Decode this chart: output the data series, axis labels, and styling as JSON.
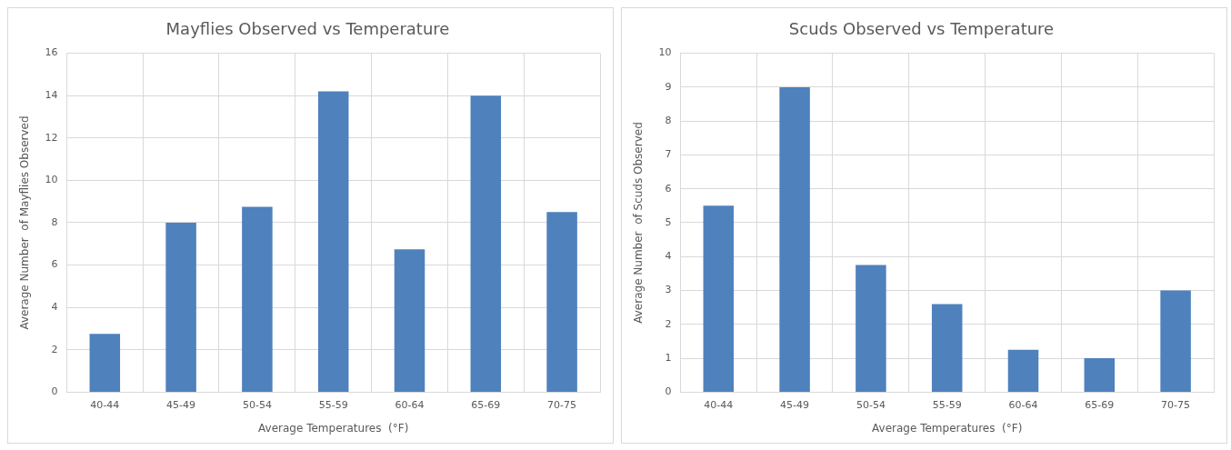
{
  "chart_data": [
    {
      "type": "bar",
      "title": "Mayflies Observed vs Temperature",
      "xlabel": "Average Temperatures  (°F)",
      "ylabel": "Average Number  of Mayflies Observed",
      "categories": [
        "40-44",
        "45-49",
        "50-54",
        "55-59",
        "60-64",
        "65-69",
        "70-75"
      ],
      "values": [
        2.75,
        8,
        8.75,
        14.2,
        6.75,
        14,
        8.5
      ],
      "color": "#4f81bd",
      "ylim": [
        0,
        16
      ],
      "yticks": [
        0,
        2,
        4,
        6,
        8,
        10,
        12,
        14,
        16
      ],
      "grid": true
    },
    {
      "type": "bar",
      "title": "Scuds Observed vs Temperature",
      "xlabel": "Average Temperatures  (°F)",
      "ylabel": "Average Number  of Scuds Observed",
      "categories": [
        "40-44",
        "45-49",
        "50-54",
        "55-59",
        "60-64",
        "65-69",
        "70-75"
      ],
      "values": [
        5.5,
        9,
        3.75,
        2.6,
        1.25,
        1,
        3
      ],
      "color": "#4f81bd",
      "ylim": [
        0,
        10
      ],
      "yticks": [
        0,
        1,
        2,
        3,
        4,
        5,
        6,
        7,
        8,
        9,
        10
      ],
      "grid": true
    }
  ]
}
